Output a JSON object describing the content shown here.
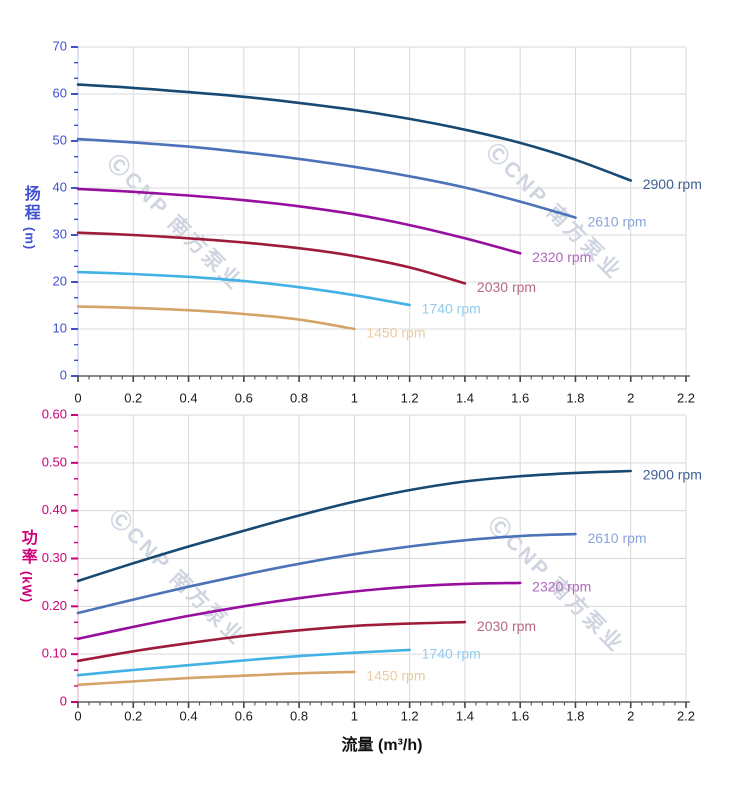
{
  "watermark": {
    "text": "ⒸCNP 南方泵业"
  },
  "grid_color": "#d9d9d9",
  "x_axis": {
    "title": "流量 (m³/h)",
    "lim": [
      0,
      2.2
    ],
    "major_step": 0.2,
    "minor_divisions": 5,
    "tick_labels": [
      "0",
      "0.2",
      "0.4",
      "0.6",
      "0.8",
      "1",
      "1.2",
      "1.4",
      "1.6",
      "1.8",
      "2",
      "2.2"
    ],
    "label_color": "#1a1a1a",
    "axis_color": "#444444"
  },
  "chart_data": [
    {
      "type": "line",
      "title": "扬程-流量曲线",
      "ylabel_cn": "扬程",
      "ylabel_unit": "(m)",
      "xlabel": "流量 (m³/h)",
      "axis_color": "#3f51d1",
      "ylim": [
        0,
        70
      ],
      "ytick_step": 10,
      "ytick_labels": [
        "0",
        "10",
        "20",
        "30",
        "40",
        "50",
        "60",
        "70"
      ],
      "x_start": 0,
      "x_step": 0.2,
      "legend_position": "curve-end",
      "grid": true,
      "series": [
        {
          "name": "2900 rpm",
          "color": "#174972",
          "label_color": "#3d5f92",
          "values": [
            62.0,
            61.3,
            60.4,
            59.4,
            58.1,
            56.6,
            54.7,
            52.4,
            49.6,
            46.0,
            41.6
          ]
        },
        {
          "name": "2610 rpm",
          "color": "#4c72b8",
          "label_color": "#8ba4d9",
          "values": [
            50.4,
            49.7,
            48.8,
            47.6,
            46.2,
            44.5,
            42.5,
            40.1,
            37.1,
            33.7
          ]
        },
        {
          "name": "2320 rpm",
          "color": "#970f9f",
          "label_color": "#b168c0",
          "values": [
            39.8,
            39.2,
            38.4,
            37.4,
            36.1,
            34.4,
            32.1,
            29.3,
            26.1
          ]
        },
        {
          "name": "2030 rpm",
          "color": "#9e1c3a",
          "label_color": "#b5697e",
          "values": [
            30.5,
            30.0,
            29.3,
            28.4,
            27.2,
            25.5,
            23.1,
            19.7
          ]
        },
        {
          "name": "1740 rpm",
          "color": "#41b1e6",
          "label_color": "#93cbec",
          "values": [
            22.1,
            21.7,
            21.1,
            20.2,
            18.9,
            17.2,
            15.1
          ]
        },
        {
          "name": "1450 rpm",
          "color": "#d4a468",
          "label_color": "#e8cba1",
          "values": [
            14.8,
            14.5,
            14.0,
            13.2,
            12.0,
            10.0
          ]
        }
      ]
    },
    {
      "type": "line",
      "title": "功率-流量曲线",
      "ylabel_cn": "功率",
      "ylabel_unit": "(kW)",
      "xlabel": "流量 (m³/h)",
      "axis_color": "#cc0077",
      "ylim": [
        0,
        0.6
      ],
      "ytick_step": 0.1,
      "ytick_labels": [
        "0",
        "0.10",
        "0.20",
        "0.30",
        "0.40",
        "0.50",
        "0.60"
      ],
      "x_start": 0,
      "x_step": 0.2,
      "legend_position": "curve-end",
      "grid": true,
      "series": [
        {
          "name": "2900 rpm",
          "color": "#174972",
          "label_color": "#3d5f92",
          "values": [
            0.253,
            0.29,
            0.325,
            0.358,
            0.39,
            0.419,
            0.443,
            0.461,
            0.472,
            0.479,
            0.483
          ]
        },
        {
          "name": "2610 rpm",
          "color": "#4c72b8",
          "label_color": "#8ba4d9",
          "values": [
            0.186,
            0.214,
            0.241,
            0.266,
            0.289,
            0.309,
            0.325,
            0.338,
            0.347,
            0.351
          ]
        },
        {
          "name": "2320 rpm",
          "color": "#970f9f",
          "label_color": "#b168c0",
          "values": [
            0.132,
            0.157,
            0.18,
            0.2,
            0.217,
            0.231,
            0.241,
            0.247,
            0.249
          ]
        },
        {
          "name": "2030 rpm",
          "color": "#9e1c3a",
          "label_color": "#b5697e",
          "values": [
            0.086,
            0.106,
            0.123,
            0.138,
            0.15,
            0.159,
            0.164,
            0.167
          ]
        },
        {
          "name": "1740 rpm",
          "color": "#41b1e6",
          "label_color": "#93cbec",
          "values": [
            0.056,
            0.067,
            0.077,
            0.087,
            0.096,
            0.103,
            0.109
          ]
        },
        {
          "name": "1450 rpm",
          "color": "#d4a468",
          "label_color": "#e8cba1",
          "values": [
            0.036,
            0.043,
            0.05,
            0.055,
            0.06,
            0.063
          ]
        }
      ]
    }
  ]
}
